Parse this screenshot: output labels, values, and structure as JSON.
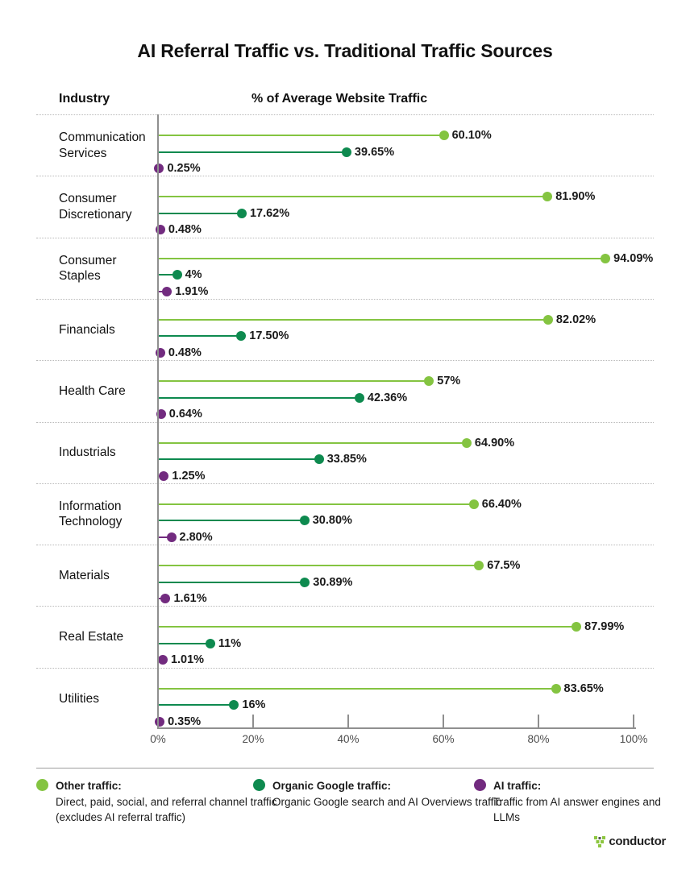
{
  "title": "AI Referral Traffic vs. Traditional Traffic Sources",
  "header": {
    "industry_label": "Industry",
    "traffic_label": "% of Average Website Traffic"
  },
  "chart_data": {
    "type": "bar",
    "subtype": "horizontal-lollipop",
    "title": "AI Referral Traffic vs. Traditional Traffic Sources",
    "xlabel": "% of Average Website Traffic",
    "ylabel": "Industry",
    "xlim": [
      0,
      100
    ],
    "x_ticks": [
      "0%",
      "20%",
      "40%",
      "60%",
      "80%",
      "100%"
    ],
    "grid": "dotted row separators",
    "legend_position": "bottom",
    "categories": [
      "Communication Services",
      "Consumer Discretionary",
      "Consumer Staples",
      "Financials",
      "Health Care",
      "Industrials",
      "Information Technology",
      "Materials",
      "Real Estate",
      "Utilities"
    ],
    "series": [
      {
        "name": "Other traffic",
        "color": "#84C441",
        "values": [
          60.1,
          81.9,
          94.09,
          82.02,
          57,
          64.9,
          66.4,
          67.5,
          87.99,
          83.65
        ],
        "labels": [
          "60.10%",
          "81.90%",
          "94.09%",
          "82.02%",
          "57%",
          "64.90%",
          "66.40%",
          "67.5%",
          "87.99%",
          "83.65%"
        ]
      },
      {
        "name": "Organic Google traffic",
        "color": "#0E8A4F",
        "values": [
          39.65,
          17.62,
          4,
          17.5,
          42.36,
          33.85,
          30.8,
          30.89,
          11,
          16
        ],
        "labels": [
          "39.65%",
          "17.62%",
          "4%",
          "17.50%",
          "42.36%",
          "33.85%",
          "30.80%",
          "30.89%",
          "11%",
          "16%"
        ]
      },
      {
        "name": "AI traffic",
        "color": "#722B7F",
        "values": [
          0.25,
          0.48,
          1.91,
          0.48,
          0.64,
          1.25,
          2.8,
          1.61,
          1.01,
          0.35
        ],
        "labels": [
          "0.25%",
          "0.48%",
          "1.91%",
          "0.48%",
          "0.64%",
          "1.25%",
          "2.80%",
          "1.61%",
          "1.01%",
          "0.35%"
        ]
      }
    ]
  },
  "legend": {
    "items": [
      {
        "title": "Other traffic:",
        "desc": "Direct, paid, social, and referral channel traffic",
        "desc2": "(excludes AI referral traffic)",
        "color": "#84C441"
      },
      {
        "title": "Organic Google traffic:",
        "desc": "Organic Google search and AI Overviews traffic",
        "desc2": "",
        "color": "#0E8A4F"
      },
      {
        "title": "AI traffic:",
        "desc": "Traffic from AI answer engines and LLMs",
        "desc2": "",
        "color": "#722B7F"
      }
    ]
  },
  "footer": {
    "brand": "conductor"
  },
  "colors": {
    "other_traffic": "#84C441",
    "organic_google_traffic": "#0E8A4F",
    "ai_traffic": "#722B7F",
    "axis": "#8F8F8F",
    "logo_green": "#8CC63F"
  }
}
